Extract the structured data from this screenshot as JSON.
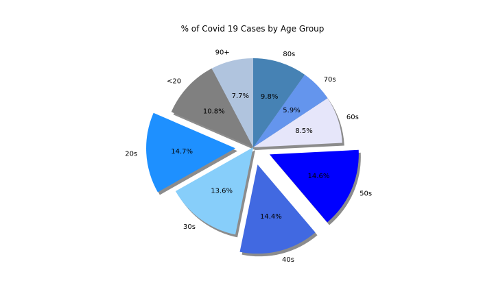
{
  "chart_data": {
    "type": "pie",
    "title": "% of Covid 19 Cases by Age Group",
    "start_angle_deg": 90,
    "direction": "counterclockwise",
    "shadow": true,
    "slices": [
      {
        "label": "90+",
        "value": 7.7,
        "pct_text": "7.7%",
        "color": "#b0c4de",
        "exploded": false
      },
      {
        "label": "<20",
        "value": 10.8,
        "pct_text": "10.8%",
        "color": "#808080",
        "exploded": false
      },
      {
        "label": "20s",
        "value": 14.7,
        "pct_text": "14.7%",
        "color": "#1e90ff",
        "exploded": true
      },
      {
        "label": "30s",
        "value": 13.6,
        "pct_text": "13.6%",
        "color": "#87cefa",
        "exploded": false
      },
      {
        "label": "40s",
        "value": 14.4,
        "pct_text": "14.4%",
        "color": "#4169e1",
        "exploded": true
      },
      {
        "label": "50s",
        "value": 14.6,
        "pct_text": "14.6%",
        "color": "#0000ff",
        "exploded": true
      },
      {
        "label": "60s",
        "value": 8.5,
        "pct_text": "8.5%",
        "color": "#e6e6fa",
        "exploded": false
      },
      {
        "label": "70s",
        "value": 5.9,
        "pct_text": "5.9%",
        "color": "#6495ed",
        "exploded": false
      },
      {
        "label": "80s",
        "value": 9.8,
        "pct_text": "9.8%",
        "color": "#4682b4",
        "exploded": false
      }
    ]
  }
}
